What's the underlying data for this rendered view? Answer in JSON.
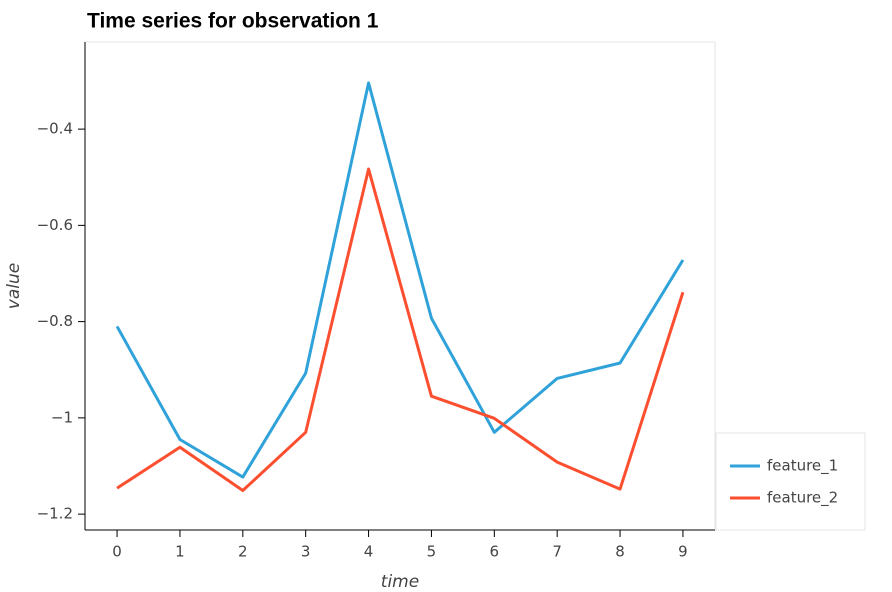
{
  "chart_data": {
    "type": "line",
    "title": "Time series for observation 1",
    "x_label": "time",
    "y_label": "value",
    "x": [
      0,
      1,
      2,
      3,
      4,
      5,
      6,
      7,
      8,
      9
    ],
    "series": [
      {
        "name": "feature_1",
        "color": "#30a2da",
        "values": [
          -0.81,
          -1.045,
          -1.123,
          -0.907,
          -0.304,
          -0.793,
          -1.03,
          -0.918,
          -0.886,
          -0.672
        ]
      },
      {
        "name": "feature_2",
        "color": "#fc4f30",
        "values": [
          -1.146,
          -1.061,
          -1.151,
          -1.03,
          -0.483,
          -0.955,
          -1.001,
          -1.092,
          -1.148,
          -0.739
        ]
      }
    ],
    "xlim": [
      -0.51,
      9.51
    ],
    "xticks": [
      0,
      1,
      2,
      3,
      4,
      5,
      6,
      7,
      8,
      9
    ],
    "ylim": [
      -1.233,
      -0.219
    ],
    "yticks": [
      {
        "value": -1.2,
        "label": "−1.2"
      },
      {
        "value": -1,
        "label": "−1"
      },
      {
        "value": -0.8,
        "label": "−0.8"
      },
      {
        "value": -0.6,
        "label": "−0.6"
      },
      {
        "value": -0.4,
        "label": "−0.4"
      }
    ],
    "legend": "outside-bottom-right"
  }
}
